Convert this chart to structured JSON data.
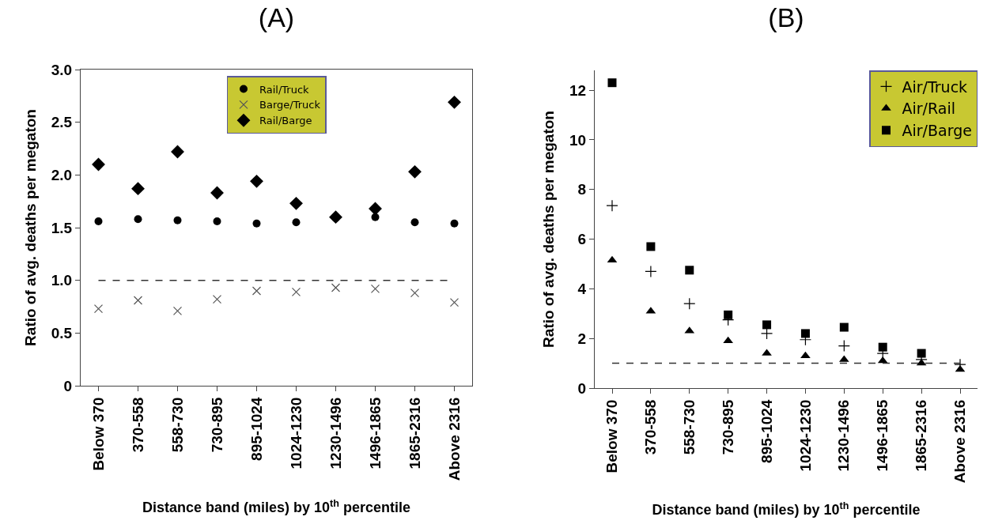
{
  "chart_data": [
    {
      "type": "scatter",
      "title": "(A)",
      "xlabel": "Distance band (miles) by 10$^{th}$ percentile",
      "ylabel": "Ratio of avg. deaths per megaton",
      "categories": [
        "Below 370",
        "370-558",
        "558-730",
        "730-895",
        "895-1024",
        "1024-1230",
        "1230-1496",
        "1496-1865",
        "1865-2316",
        "Above 2316"
      ],
      "ylim": [
        0,
        3
      ],
      "yticks": [
        0,
        {
          "value": 0.5,
          "label": "0.5"
        },
        {
          "value": 1,
          "label": "1.0"
        },
        {
          "value": 1.5,
          "label": "1.5"
        },
        {
          "value": 2,
          "label": "2.0"
        },
        {
          "value": 2.5,
          "label": "2.5"
        },
        {
          "value": 3,
          "label": "3.0"
        }
      ],
      "grid": false,
      "legend": "top",
      "ref_lines": [
        {
          "axis": "y",
          "value": 1,
          "line_style": "dashed",
          "color": "#333333"
        }
      ],
      "series": [
        {
          "name": "Rail/Truck",
          "color": "#000000",
          "marker": "circle",
          "values": [
            1.56,
            1.58,
            1.57,
            1.56,
            1.54,
            1.55,
            1.59,
            1.6,
            1.55,
            1.54
          ]
        },
        {
          "name": "Barge/Truck",
          "color": "#555555",
          "marker": "x",
          "values": [
            0.73,
            0.81,
            0.71,
            0.82,
            0.9,
            0.89,
            0.93,
            0.92,
            0.88,
            0.79
          ]
        },
        {
          "name": "Rail/Barge",
          "color": "#000000",
          "marker": "diamond",
          "values": [
            2.1,
            1.87,
            2.22,
            1.83,
            1.94,
            1.73,
            1.6,
            1.68,
            2.03,
            2.69
          ]
        }
      ]
    },
    {
      "type": "scatter",
      "title": "(B)",
      "xlabel": "Distance band (miles) by 10$^{th}$ percentile",
      "ylabel": "Ratio of avg. deaths per megaton",
      "categories": [
        "Below 370",
        "370-558",
        "558-730",
        "730-895",
        "895-1024",
        "1024-1230",
        "1230-1496",
        "1496-1865",
        "1865-2316",
        "Above 2316"
      ],
      "ylim": [
        0,
        12.8
      ],
      "yticks": [
        0,
        2,
        4,
        6,
        8,
        10,
        12
      ],
      "grid": false,
      "legend": "top right",
      "ref_lines": [
        {
          "axis": "y",
          "value": 1,
          "line_style": "dashed",
          "color": "#333333"
        }
      ],
      "series": [
        {
          "name": "Air/Truck",
          "color": "#000000",
          "marker": "cross",
          "values": [
            7.35,
            4.7,
            3.4,
            2.75,
            2.2,
            1.95,
            1.7,
            1.4,
            1.15,
            0.95
          ]
        },
        {
          "name": "Air/Rail",
          "color": "#000000",
          "marker": "triangle",
          "values": [
            5.15,
            3.1,
            2.3,
            1.9,
            1.4,
            1.3,
            1.15,
            1.1,
            1.0,
            0.75
          ]
        },
        {
          "name": "Air/Barge",
          "color": "#000000",
          "marker": "square",
          "values": [
            12.3,
            5.7,
            4.75,
            2.95,
            2.55,
            2.2,
            2.45,
            1.65,
            1.4,
            null
          ]
        }
      ]
    }
  ]
}
